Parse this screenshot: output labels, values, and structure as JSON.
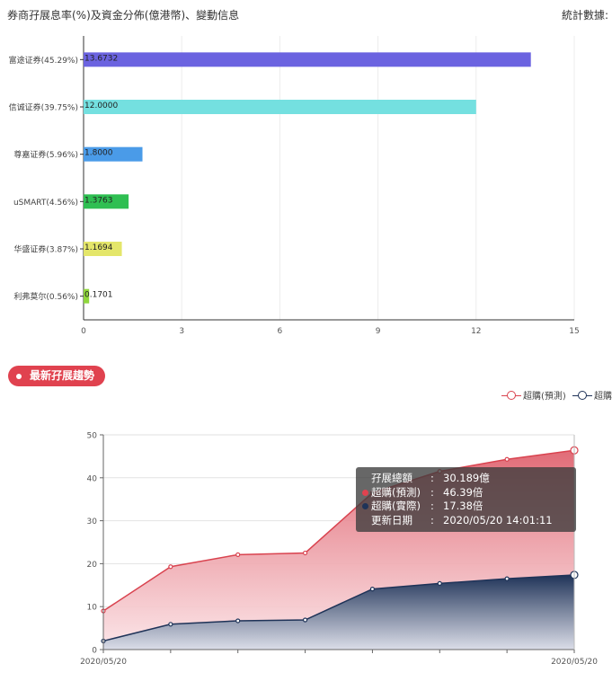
{
  "header": {
    "title": "券商孖展息率(%)及資金分佈(億港幣)、變動信息",
    "right_label": "統計數據:"
  },
  "section": {
    "label": "最新孖展趨勢"
  },
  "legend": [
    {
      "name": "超購(預測)",
      "color": "#d9434f"
    },
    {
      "name": "超購(實際)",
      "color": "#1f3358"
    }
  ],
  "tooltip": {
    "rows": [
      {
        "label": "孖展總額",
        "value": "30.189億",
        "dot": ""
      },
      {
        "label": "超購(預測)",
        "value": "46.39倍",
        "dot": "#e0424f"
      },
      {
        "label": "超購(實際)",
        "value": "17.38倍",
        "dot": "#1f3358"
      },
      {
        "label": "更新日期",
        "value": "2020/05/20 14:01:11",
        "dot": ""
      }
    ]
  },
  "chart_data": [
    {
      "type": "bar",
      "orientation": "horizontal",
      "categories": [
        "富途证券(45.29%)",
        "信诚证券(39.75%)",
        "尊嘉证券(5.96%)",
        "uSMART(4.56%)",
        "华盛证券(3.87%)",
        "利弗莫尔(0.56%)"
      ],
      "values": [
        13.6732,
        12.0,
        1.8,
        1.3763,
        1.1694,
        0.1701
      ],
      "value_labels": [
        "13.6732",
        "12.0000",
        "1.8000",
        "1.3763",
        "1.1694",
        "0.1701"
      ],
      "colors": [
        "#6b63e0",
        "#74e0e0",
        "#4a9be8",
        "#2fbf52",
        "#e4e66a",
        "#8fd63c"
      ],
      "xlim": [
        0,
        15
      ],
      "xticks": [
        "0",
        "3",
        "6",
        "9",
        "12",
        "15"
      ],
      "grid": true
    },
    {
      "type": "area",
      "x_labels": [
        "2020/05/20",
        "2020/05/20"
      ],
      "ylim": [
        0,
        50
      ],
      "yticks": [
        "0",
        "10",
        "20",
        "30",
        "40",
        "50"
      ],
      "grid": true,
      "series": [
        {
          "name": "超購(預測)",
          "color": "#d9434f",
          "values": [
            9,
            19.3,
            22.1,
            22.5,
            36.5,
            41.5,
            44.3,
            46.39
          ]
        },
        {
          "name": "超購(實際)",
          "color": "#1f3358",
          "values": [
            2,
            5.9,
            6.7,
            6.9,
            14.1,
            15.4,
            16.5,
            17.38
          ]
        }
      ],
      "point_count": 8
    }
  ]
}
